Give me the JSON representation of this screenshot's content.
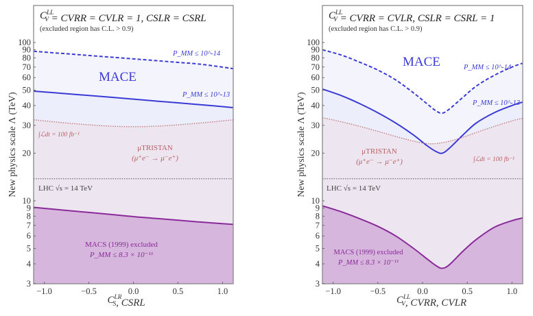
{
  "chart_data": [
    {
      "type": "line",
      "panel": "left",
      "header": "C_V^LL = C_V^RR = C_V^LR = 1,  C_S^LR = C_S^RL",
      "subheader": "(excluded region has C.L. > 0.9)",
      "xlabel": "C_S^LR, C_S^RL",
      "ylabel": "New physics scale Λ (TeV)",
      "xlim": [
        -1.12,
        1.12
      ],
      "ylim": [
        3,
        120
      ],
      "yscale": "log",
      "xticks": [
        -1.0,
        -0.5,
        0.0,
        0.5,
        1.0
      ],
      "xtick_labels": [
        "−1.0",
        "−0.5",
        "0.0",
        "0.5",
        "1.0"
      ],
      "yticks": [
        3,
        4,
        5,
        6,
        7,
        8,
        9,
        10,
        20,
        30,
        40,
        50,
        60,
        70,
        80,
        90,
        100
      ],
      "ytick_labels": [
        "3",
        "4",
        "5",
        "6",
        "7",
        "8",
        "9",
        "10",
        "20",
        "30",
        "40",
        "50",
        "60",
        "70",
        "80",
        "90",
        "100"
      ],
      "x": [
        -1.12,
        -0.75,
        -0.5,
        -0.25,
        0.0,
        0.25,
        0.5,
        0.75,
        1.12
      ],
      "series": [
        {
          "name": "MACE P_MM ≤ 10^-14",
          "style": "dashed",
          "color": "#3a3ad6",
          "values": [
            88,
            84.9,
            82.8,
            80.8,
            78.8,
            76.9,
            74.9,
            73.0,
            68.4
          ]
        },
        {
          "name": "MACE P_MM ≤ 10^-13",
          "style": "solid",
          "color": "#3a3ad6",
          "values": [
            49.3,
            47.5,
            46.3,
            45.1,
            43.9,
            42.7,
            41.6,
            40.5,
            38.8
          ]
        },
        {
          "name": "μTRISTAN ∫L dt = 100 fb^-1",
          "style": "dotted",
          "color": "#c07878",
          "values": [
            32.5,
            31.0,
            30.2,
            29.6,
            29.4,
            29.6,
            30.2,
            31.0,
            32.5
          ]
        },
        {
          "name": "LHC √s = 14 TeV",
          "style": "dotted",
          "color": "#777777",
          "values": [
            13.8,
            13.8,
            13.8,
            13.8,
            13.8,
            13.8,
            13.8,
            13.8,
            13.8
          ]
        },
        {
          "name": "MACS (1999) excluded P_MM ≤ 8.3×10^-11",
          "style": "solid",
          "color": "#8a2a9a",
          "values": [
            9.1,
            8.7,
            8.45,
            8.2,
            7.95,
            7.75,
            7.55,
            7.35,
            7.1
          ]
        }
      ],
      "annotations": {
        "mace": "MACE",
        "p14": "P_MM ≤ 10^-14",
        "p13": "P_MM ≤ 10^-13",
        "lumi": "∫ℒdt = 100 fb⁻¹",
        "tristan1": "μTRISTAN",
        "tristan2": "(μ⁺e⁻ → μ⁻e⁺)",
        "lhc": "LHC √s = 14 TeV",
        "macs1": "MACS (1999) excluded",
        "macs2": "P_MM ≤ 8.3 × 10⁻¹¹"
      }
    },
    {
      "type": "line",
      "panel": "right",
      "header": "C_V^LL = C_V^RR = C_V^LR,  C_S^LR = C_S^RL = 1",
      "subheader": "(excluded region has C.L. > 0.9)",
      "xlabel": "C_V^LL, C_V^RR, C_V^LR",
      "ylabel": "New physics scale Λ (TeV)",
      "xlim": [
        -1.12,
        1.12
      ],
      "ylim": [
        3,
        120
      ],
      "yscale": "log",
      "xticks": [
        -1.0,
        -0.5,
        0.0,
        0.5,
        1.0
      ],
      "xtick_labels": [
        "−1.0",
        "−0.5",
        "0.0",
        "0.5",
        "1.0"
      ],
      "yticks": [
        3,
        4,
        5,
        6,
        7,
        8,
        9,
        10,
        20,
        30,
        40,
        50,
        60,
        70,
        80,
        90,
        100
      ],
      "ytick_labels": [
        "3",
        "4",
        "5",
        "6",
        "7",
        "8",
        "9",
        "10",
        "20",
        "30",
        "40",
        "50",
        "60",
        "70",
        "80",
        "90",
        "100"
      ],
      "x": [
        -1.12,
        -0.9,
        -0.7,
        -0.5,
        -0.3,
        -0.1,
        0.05,
        0.15,
        0.22,
        0.3,
        0.45,
        0.6,
        0.8,
        1.0,
        1.12
      ],
      "series": [
        {
          "name": "MACE P_MM ≤ 10^-14",
          "style": "dashed",
          "color": "#3a3ad6",
          "values": [
            90,
            83,
            75,
            67,
            58,
            48,
            41,
            37,
            35.8,
            38,
            45,
            53,
            62,
            70,
            74
          ]
        },
        {
          "name": "MACE P_MM ≤ 10^-13",
          "style": "solid",
          "color": "#3a3ad6",
          "values": [
            50.8,
            46,
            41,
            36,
            31,
            26,
            22.3,
            20.5,
            20,
            21.5,
            26,
            31,
            36,
            40,
            42
          ]
        },
        {
          "name": "μTRISTAN ∫L dt = 100 fb^-1",
          "style": "dotted",
          "color": "#c07878",
          "values": [
            33.5,
            31.5,
            29.5,
            27.5,
            25.5,
            23.8,
            23.0,
            23.0,
            23.3,
            23.8,
            25.2,
            27,
            29.5,
            32,
            33.2
          ]
        },
        {
          "name": "LHC √s = 14 TeV",
          "style": "dotted",
          "color": "#777777",
          "values": [
            13.8,
            13.8,
            13.8,
            13.8,
            13.8,
            13.8,
            13.8,
            13.8,
            13.8,
            13.8,
            13.8,
            13.8,
            13.8,
            13.8,
            13.8
          ]
        },
        {
          "name": "MACS (1999) excluded P_MM ≤ 8.3×10^-11",
          "style": "solid",
          "color": "#8a2a9a",
          "values": [
            9.3,
            8.5,
            7.7,
            6.9,
            6.0,
            5.0,
            4.3,
            3.9,
            3.75,
            3.95,
            4.8,
            5.7,
            6.8,
            7.5,
            7.8
          ]
        }
      ],
      "annotations": {
        "mace": "MACE",
        "p14": "P_MM ≤ 10^-14",
        "p13": "P_MM ≤ 10^-13",
        "lumi": "∫ℒdt = 100 fb⁻¹",
        "tristan1": "μTRISTAN",
        "tristan2": "(μ⁺e⁻ → μ⁻e⁺)",
        "lhc": "LHC √s = 14 TeV",
        "macs1": "MACS (1999) excluded",
        "macs2": "P_MM ≤ 8.3 × 10⁻¹¹"
      }
    }
  ]
}
